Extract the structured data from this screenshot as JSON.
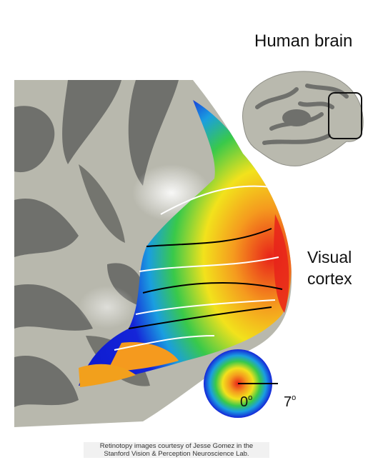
{
  "labels": {
    "human_brain": "Human brain",
    "visual_line1": "Visual",
    "visual_line2": "cortex",
    "zero": "0",
    "seven": "7",
    "degree_symbol": "o"
  },
  "credit": {
    "line1": "Retinotopy images courtesy of Jesse Gomez in the",
    "line2": "Stanford Vision & Perception Neuroscience Lab."
  },
  "colors": {
    "sulcus_dark": "#6f706c",
    "gyrus_light": "#b9b9ae",
    "fovea_red": "#e8231a",
    "mid_yellow": "#f2e21c",
    "green": "#39c94a",
    "periphery_blue": "#1525d8",
    "boundary_white": "#ffffff",
    "boundary_black": "#000000"
  },
  "icons": {
    "brain": "brain-icon",
    "legend": "eccentricity-legend-disc"
  }
}
